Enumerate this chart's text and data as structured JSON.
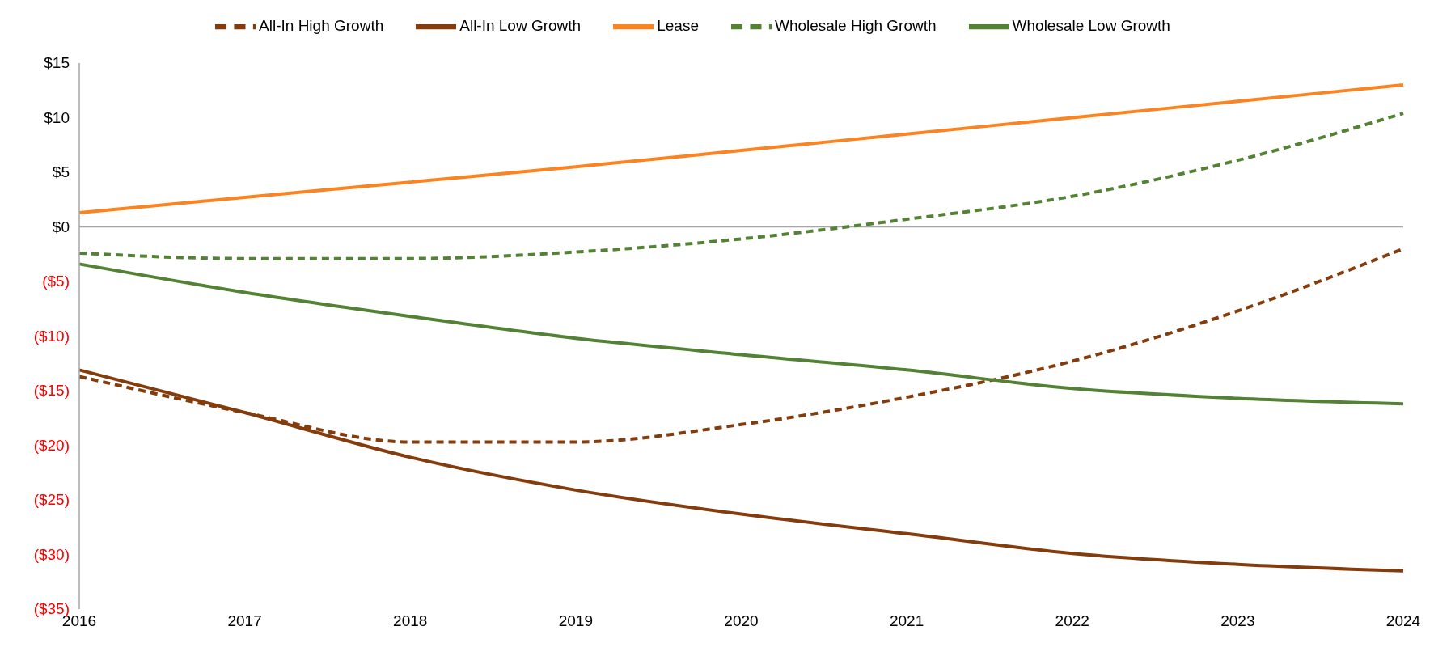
{
  "chart_data": {
    "type": "line",
    "categories": [
      "2016",
      "2017",
      "2018",
      "2019",
      "2020",
      "2021",
      "2022",
      "2023",
      "2024"
    ],
    "series": [
      {
        "name": "All-In Low Growth",
        "color": "#843c0c",
        "line_style": "solid",
        "values": [
          -13.1,
          -17.0,
          -21.1,
          -24.1,
          -26.3,
          -28.1,
          -29.9,
          -30.9,
          -31.5
        ]
      },
      {
        "name": "All-In High Growth",
        "color": "#843c0c",
        "line_style": "dashed",
        "values": [
          -13.7,
          -17.0,
          -19.7,
          -19.7,
          -18.1,
          -15.6,
          -12.3,
          -7.7,
          -2.0
        ]
      },
      {
        "name": "Wholesale Low Growth",
        "color": "#548235",
        "line_style": "solid",
        "values": [
          -3.4,
          -6.0,
          -8.2,
          -10.2,
          -11.7,
          -13.1,
          -14.8,
          -15.7,
          -16.2
        ]
      },
      {
        "name": "Wholesale High Growth",
        "color": "#548235",
        "line_style": "dashed",
        "values": [
          -2.4,
          -2.9,
          -2.9,
          -2.3,
          -1.1,
          0.7,
          2.8,
          6.1,
          10.4
        ]
      },
      {
        "name": "Lease",
        "color": "#fb8320",
        "line_style": "solid",
        "values": [
          1.3,
          2.7,
          4.1,
          5.5,
          7.0,
          8.5,
          10.0,
          11.5,
          13.0
        ]
      }
    ],
    "ylim": [
      -35,
      15
    ],
    "yticks": [
      {
        "value": 15,
        "label": "$15"
      },
      {
        "value": 10,
        "label": "$10"
      },
      {
        "value": 5,
        "label": "$5"
      },
      {
        "value": 0,
        "label": "$0"
      },
      {
        "value": -5,
        "label": "($5)"
      },
      {
        "value": -10,
        "label": "($10)"
      },
      {
        "value": -15,
        "label": "($15)"
      },
      {
        "value": -20,
        "label": "($20)"
      },
      {
        "value": -25,
        "label": "($25)"
      },
      {
        "value": -30,
        "label": "($30)"
      },
      {
        "value": -35,
        "label": "($35)"
      }
    ],
    "ref_lines": [
      {
        "axis": "y",
        "value": 0,
        "color": "#a6a6a6"
      }
    ],
    "grid": false,
    "legend": "top",
    "marker": "none"
  }
}
